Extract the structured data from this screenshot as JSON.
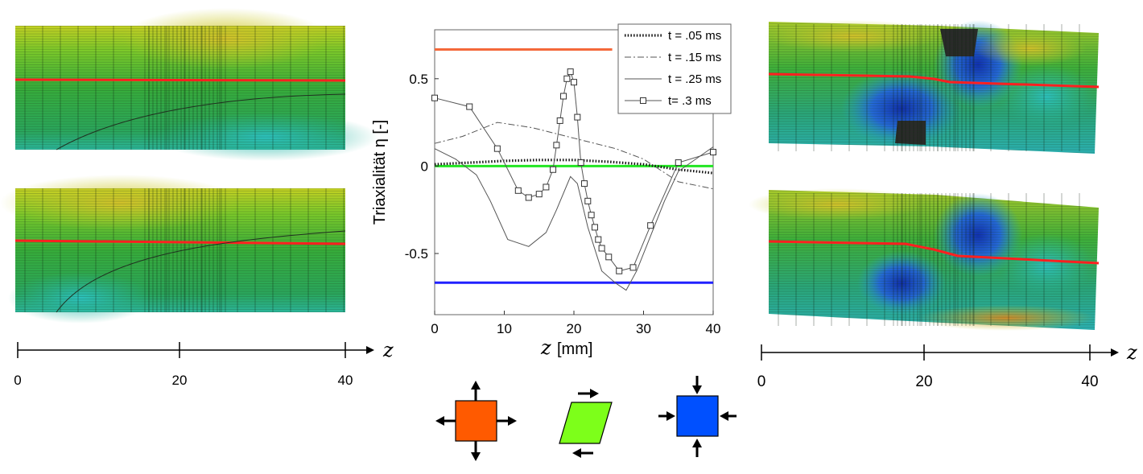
{
  "chart_data": {
    "type": "line",
    "xlabel": "[mm]",
    "xlabel_symbol": "z",
    "ylabel": "Triaxialität η  [-]",
    "xlim": [
      0,
      40
    ],
    "ylim": [
      -0.85,
      0.78
    ],
    "xticks": [
      0,
      10,
      20,
      30,
      40
    ],
    "yticks": [
      -0.5,
      0,
      0.5
    ],
    "ytick_labels": [
      "-0.5",
      "0",
      "0.5"
    ],
    "grid": false,
    "legend_position": "top-right",
    "reference_lines": [
      {
        "y": 0.667,
        "color": "#f4683a",
        "x_range": [
          0,
          25.5
        ]
      },
      {
        "y": 0.0,
        "color": "#22e622",
        "x_range": [
          0,
          40
        ]
      },
      {
        "y": -0.667,
        "color": "#2121ff",
        "x_range": [
          0,
          40
        ]
      }
    ],
    "series": [
      {
        "name": "t = .05 ms",
        "style": "dotted",
        "x": [
          0,
          5,
          10,
          15,
          20,
          25,
          30,
          35,
          40
        ],
        "y": [
          0.01,
          0.02,
          0.03,
          0.035,
          0.035,
          0.025,
          0.01,
          -0.02,
          -0.04
        ]
      },
      {
        "name": "t = .15 ms",
        "style": "dashdot",
        "x": [
          0,
          4,
          9,
          14,
          20,
          26,
          30,
          35,
          40
        ],
        "y": [
          0.13,
          0.17,
          0.25,
          0.22,
          0.16,
          0.1,
          0.04,
          -0.09,
          -0.13
        ]
      },
      {
        "name": "t = .25 ms",
        "style": "solid",
        "x": [
          0,
          3,
          6,
          8,
          10.5,
          13.5,
          16,
          17.5,
          19.5,
          20.5,
          22,
          24,
          26,
          27.5,
          29,
          31,
          33,
          35,
          40
        ],
        "y": [
          0.1,
          0.04,
          -0.05,
          -0.2,
          -0.42,
          -0.46,
          -0.38,
          -0.25,
          -0.06,
          -0.1,
          -0.35,
          -0.6,
          -0.67,
          -0.71,
          -0.6,
          -0.4,
          -0.2,
          -0.03,
          0.11
        ]
      },
      {
        "name": "t= .3 ms",
        "style": "solid-square",
        "x": [
          0,
          5,
          9,
          12,
          13.5,
          15,
          16,
          17,
          17.5,
          18,
          18.5,
          19,
          19.5,
          20,
          20.5,
          21,
          21.5,
          22,
          22.5,
          23,
          23.5,
          24,
          25,
          26.5,
          28.5,
          31,
          35,
          40
        ],
        "y": [
          0.39,
          0.34,
          0.1,
          -0.14,
          -0.18,
          -0.16,
          -0.12,
          -0.02,
          0.12,
          0.26,
          0.4,
          0.5,
          0.54,
          0.48,
          0.28,
          0.02,
          -0.1,
          -0.2,
          -0.28,
          -0.35,
          -0.42,
          -0.47,
          -0.52,
          -0.6,
          -0.58,
          -0.34,
          0.02,
          0.08
        ]
      }
    ]
  },
  "panels": {
    "left_axis": {
      "ticks": [
        "0",
        "20",
        "40"
      ],
      "symbol": "z"
    },
    "right_axis": {
      "ticks": [
        "0",
        "20",
        "40"
      ],
      "symbol": "z"
    }
  },
  "stress_icons": {
    "tension_color": "#ff5a00",
    "shear_color": "#7dff1a",
    "compression_color": "#0050ff"
  }
}
